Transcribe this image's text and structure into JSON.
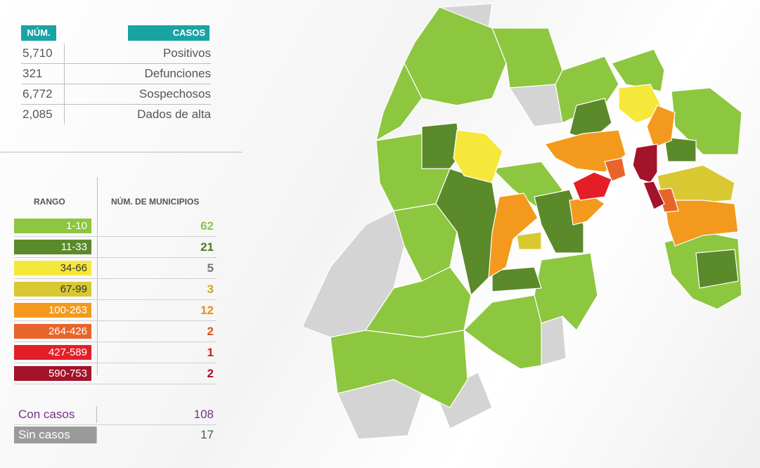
{
  "stats": {
    "header_num": "NÚM.",
    "header_casos": "CASOS",
    "rows": [
      {
        "num": "5,710",
        "label": "Positivos"
      },
      {
        "num": "321",
        "label": "Defunciones"
      },
      {
        "num": "6,772",
        "label": "Sospechosos"
      },
      {
        "num": "2,085",
        "label": "Dados de alta"
      }
    ]
  },
  "legend": {
    "header_rango": "RANGO",
    "header_municipios": "NÚM. DE MUNICIPIOS",
    "rows": [
      {
        "range": "1-10",
        "count": "62",
        "swatch": "#8dc63f",
        "text_color": "#ffffff",
        "count_color": "#8dc63f"
      },
      {
        "range": "11-33",
        "count": "21",
        "swatch": "#5b8a2a",
        "text_color": "#ffffff",
        "count_color": "#4c7a22"
      },
      {
        "range": "34-66",
        "count": "5",
        "swatch": "#f6e83a",
        "text_color": "#333333",
        "count_color": "#777777"
      },
      {
        "range": "67-99",
        "count": "3",
        "swatch": "#d8c832",
        "text_color": "#333333",
        "count_color": "#c9a81e"
      },
      {
        "range": "100-263",
        "count": "12",
        "swatch": "#f39a1e",
        "text_color": "#ffffff",
        "count_color": "#f08a1a"
      },
      {
        "range": "264-426",
        "count": "2",
        "swatch": "#e8642a",
        "text_color": "#ffffff",
        "count_color": "#d9531e"
      },
      {
        "range": "427-589",
        "count": "1",
        "swatch": "#e41e26",
        "text_color": "#ffffff",
        "count_color": "#d61a1a"
      },
      {
        "range": "590-753",
        "count": "2",
        "swatch": "#a3132a",
        "text_color": "#ffffff",
        "count_color": "#a3132a"
      }
    ]
  },
  "totals": {
    "con_label": "Con casos",
    "con_value": "108",
    "sin_label": "Sin casos",
    "sin_value": "17",
    "con_color": "#7a2f8e",
    "sin_bg": "#9a9a9a"
  },
  "colors": {
    "header_teal": "#1aa3a3",
    "no_cases": "#d4d4d4"
  }
}
